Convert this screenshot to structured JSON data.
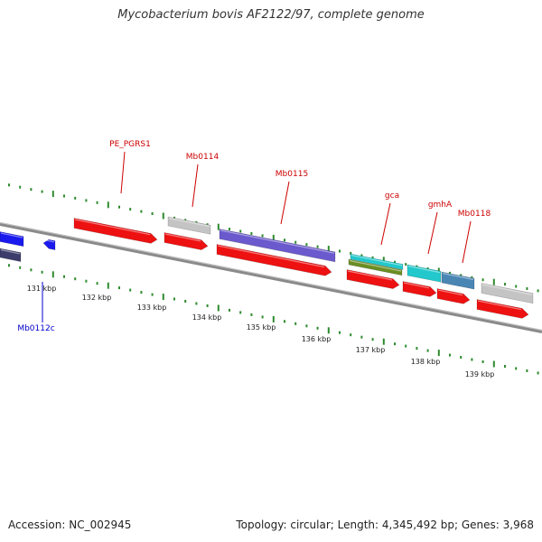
{
  "title": "Mycobacterium bovis AF2122/97, complete genome",
  "footer": {
    "accession": "Accession: NC_002945",
    "summary": "Topology: circular; Length: 4,345,492 bp; Genes: 3,968"
  },
  "colors": {
    "backbone": "#8a8a8a",
    "tick": "#2e8b2e",
    "cds_red": "#ee1111",
    "gene_grey": "#c4c4c4",
    "gene_purple": "#6a5acd",
    "gene_cyan": "#22c8cc",
    "gene_olive": "#6b8e23",
    "gene_steel": "#4a86b4",
    "gene_blue": "#1a1aee",
    "gene_navy": "#3d3d6b",
    "label_red": "#cc0000",
    "label_blue": "#0000cc"
  },
  "kbp_labels": [
    "131 kbp",
    "132 kbp",
    "133 kbp",
    "134 kbp",
    "135 kbp",
    "136 kbp",
    "137 kbp",
    "138 kbp",
    "139 kbp"
  ],
  "gene_labels": [
    {
      "text": "PE_PGRS1",
      "color": "label_red"
    },
    {
      "text": "Mb0114",
      "color": "label_red"
    },
    {
      "text": "Mb0115",
      "color": "label_red"
    },
    {
      "text": "gca",
      "color": "label_red"
    },
    {
      "text": "gmhA",
      "color": "label_red"
    },
    {
      "text": "Mb0118",
      "color": "label_red"
    },
    {
      "text": "Mb0112c",
      "color": "label_blue"
    }
  ]
}
